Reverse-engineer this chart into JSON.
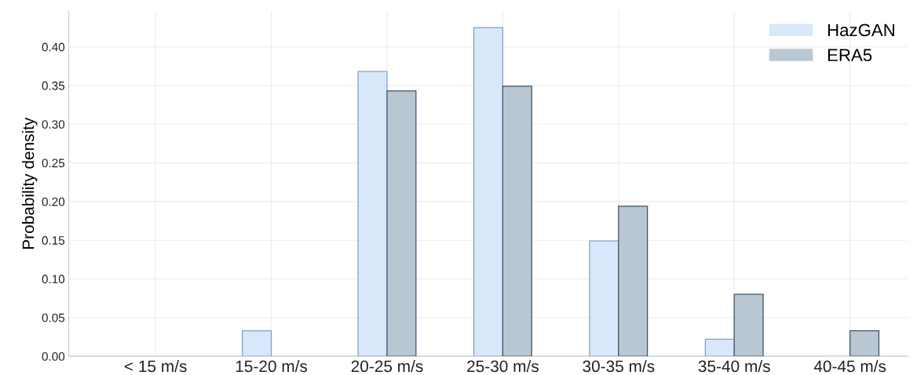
{
  "chart_data": {
    "type": "bar",
    "ylabel": "Probability density",
    "categories": [
      "< 15 m/s",
      "15-20 m/s",
      "20-25 m/s",
      "25-30 m/s",
      "30-35 m/s",
      "35-40 m/s",
      "40-45 m/s"
    ],
    "series": [
      {
        "name": "HazGAN",
        "color": "#d9e7fa",
        "values": [
          0.0,
          0.033,
          0.368,
          0.425,
          0.149,
          0.022,
          0.002
        ]
      },
      {
        "name": "ERA5",
        "color": "#b9c7d2",
        "values": [
          0.0,
          0.0,
          0.343,
          0.349,
          0.194,
          0.08,
          0.033
        ]
      }
    ],
    "ylim": [
      0,
      0.446
    ],
    "yticks": [
      {
        "value": 0,
        "label": "0.00"
      },
      {
        "value": 0.05,
        "label": "0.05"
      },
      {
        "value": 0.1,
        "label": "0.10"
      },
      {
        "value": 0.15,
        "label": "0.15"
      },
      {
        "value": 0.2,
        "label": "0.20"
      },
      {
        "value": 0.25,
        "label": "0.25"
      },
      {
        "value": 0.3,
        "label": "0.30"
      },
      {
        "value": 0.35,
        "label": "0.35"
      },
      {
        "value": 0.4,
        "label": "0.40"
      }
    ],
    "grid": true,
    "legend": "top right"
  }
}
